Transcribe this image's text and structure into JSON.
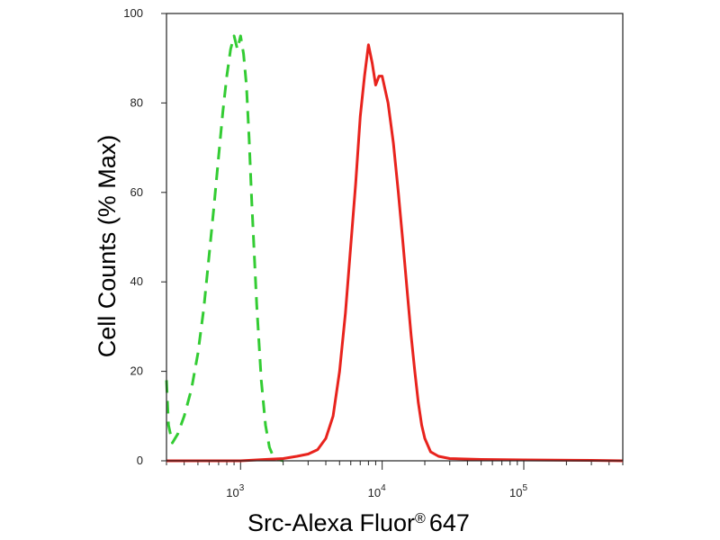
{
  "chart_data": {
    "type": "line",
    "title": "",
    "xlabel": "Src-Alexa Fluor",
    "xlabel_mark": "®",
    "xlabel_suffix": "647",
    "ylabel": "Cell Counts (% Max)",
    "x_scale": "log",
    "xlim": [
      300,
      500000
    ],
    "ylim": [
      0,
      100
    ],
    "y_ticks": [
      0,
      20,
      40,
      60,
      80,
      100
    ],
    "x_ticks": [
      {
        "base": "10",
        "exp": "3",
        "value": 1000
      },
      {
        "base": "10",
        "exp": "4",
        "value": 10000
      },
      {
        "base": "10",
        "exp": "5",
        "value": 100000
      }
    ],
    "grid": false,
    "legend": "none",
    "series": [
      {
        "color": "#33cc33",
        "dash": "dashed",
        "x": [
          300,
          310,
          330,
          360,
          400,
          450,
          500,
          550,
          600,
          650,
          700,
          750,
          800,
          850,
          900,
          950,
          1000,
          1050,
          1100,
          1150,
          1200,
          1300,
          1400,
          1500,
          1600,
          1700,
          1800,
          1900,
          2000
        ],
        "y": [
          18,
          8,
          4,
          6,
          10,
          16,
          24,
          34,
          46,
          57,
          68,
          78,
          86,
          92,
          95,
          92,
          95,
          91,
          84,
          72,
          58,
          35,
          18,
          8,
          3,
          1,
          0.5,
          0.2,
          0
        ]
      },
      {
        "color": "#e8231d",
        "dash": "solid",
        "x": [
          300,
          1000,
          1500,
          2000,
          2500,
          3000,
          3500,
          4000,
          4500,
          5000,
          5500,
          6000,
          6500,
          7000,
          7500,
          8000,
          8500,
          9000,
          9500,
          10000,
          11000,
          12000,
          13000,
          14000,
          15000,
          16000,
          17000,
          18000,
          19000,
          20000,
          22000,
          25000,
          30000,
          50000,
          100000,
          300000,
          500000
        ],
        "y": [
          0,
          0,
          0.3,
          0.5,
          1,
          1.5,
          2.5,
          5,
          10,
          20,
          33,
          48,
          62,
          77,
          86,
          93,
          89,
          84,
          86,
          86,
          80,
          71,
          60,
          49,
          38,
          28,
          20,
          13,
          8,
          5,
          2,
          1,
          0.5,
          0.3,
          0.2,
          0.1,
          0
        ]
      }
    ]
  }
}
